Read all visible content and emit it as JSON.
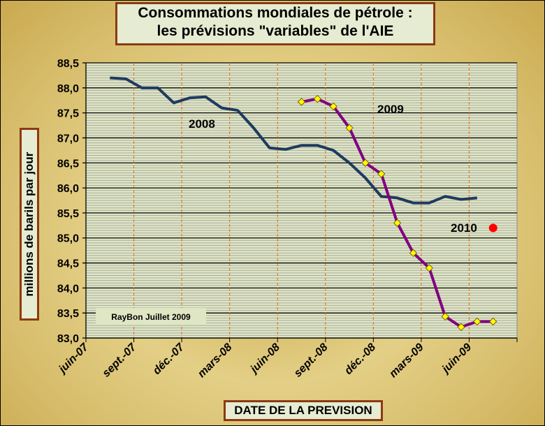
{
  "chart_data": {
    "type": "line",
    "title": "Consommations mondiales de pétrole :",
    "subtitle": "les prévisions \"variables\" de l'AIE",
    "xlabel": "DATE DE LA PREVISION",
    "ylabel": "millions de barils par jour",
    "ylim": [
      83.0,
      88.5
    ],
    "yticks": [
      "88,5",
      "88,0",
      "87,5",
      "87,0",
      "86,5",
      "86,0",
      "85,5",
      "85,0",
      "84,5",
      "84,0",
      "83,5",
      "83,0"
    ],
    "xticks": [
      "juin-07",
      "sept.-07",
      "déc.-07",
      "mars-08",
      "juin-08",
      "sept.-08",
      "déc.-08",
      "mars-09",
      "juin-09"
    ],
    "x_unit": "months since juin-07",
    "xlim": [
      0,
      27
    ],
    "series": [
      {
        "name": "2008",
        "color": "#1f3a5f",
        "markers": false,
        "x": [
          1.5,
          2.5,
          3.5,
          4.5,
          5.5,
          6.5,
          7.5,
          8.5,
          9.5,
          10.5,
          11.5,
          12.5,
          13.5,
          14.5,
          15.5,
          16.5,
          17.5,
          18.5,
          19.5,
          20.5,
          21.5,
          22.5,
          23.5,
          24.5
        ],
        "values": [
          88.2,
          88.18,
          88.0,
          88.0,
          87.7,
          87.8,
          87.82,
          87.6,
          87.55,
          87.2,
          86.8,
          86.77,
          86.85,
          86.85,
          86.75,
          86.5,
          86.2,
          85.83,
          85.8,
          85.7,
          85.7,
          85.83,
          85.77,
          85.8
        ]
      },
      {
        "name": "2009",
        "color": "#800080",
        "markers": true,
        "x": [
          13.5,
          14.5,
          15.5,
          16.5,
          17.5,
          18.5,
          19.5,
          20.5,
          21.5,
          22.5,
          23.5,
          24.5,
          25.5
        ],
        "values": [
          87.72,
          87.78,
          87.63,
          87.2,
          86.5,
          86.28,
          85.3,
          84.7,
          84.4,
          83.43,
          83.22,
          83.33,
          83.33
        ]
      },
      {
        "name": "2010",
        "color": "#ff0000",
        "markers": true,
        "x": [
          25.5
        ],
        "values": [
          85.2
        ]
      }
    ],
    "annotations": [
      "2008",
      "2009",
      "2010",
      "RayBon Juillet 2009"
    ]
  }
}
